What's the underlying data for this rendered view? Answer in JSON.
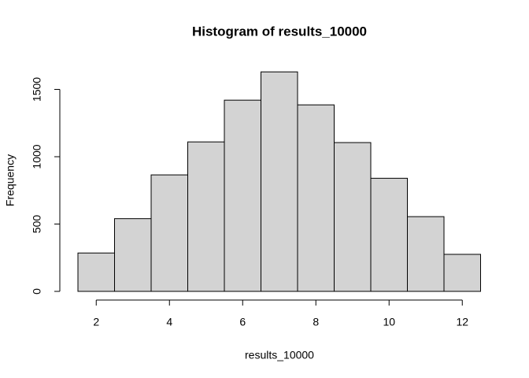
{
  "chart_data": {
    "type": "histogram",
    "title": "Histogram of results_10000",
    "x_label": "results_10000",
    "y_label": "Frequency",
    "bins": [
      1.5,
      2.5,
      3.5,
      4.5,
      5.5,
      6.5,
      7.5,
      8.5,
      9.5,
      10.5,
      11.5,
      12.5
    ],
    "values": [
      285,
      540,
      865,
      1110,
      1420,
      1630,
      1385,
      1105,
      840,
      555,
      275
    ],
    "color": "#d3d3d3",
    "xlim": [
      1.5,
      12.5
    ],
    "xticks": [
      2,
      4,
      6,
      8,
      10,
      12
    ],
    "ylim": [
      0,
      1500
    ],
    "yticks": [
      0,
      500,
      1000,
      1500
    ]
  }
}
